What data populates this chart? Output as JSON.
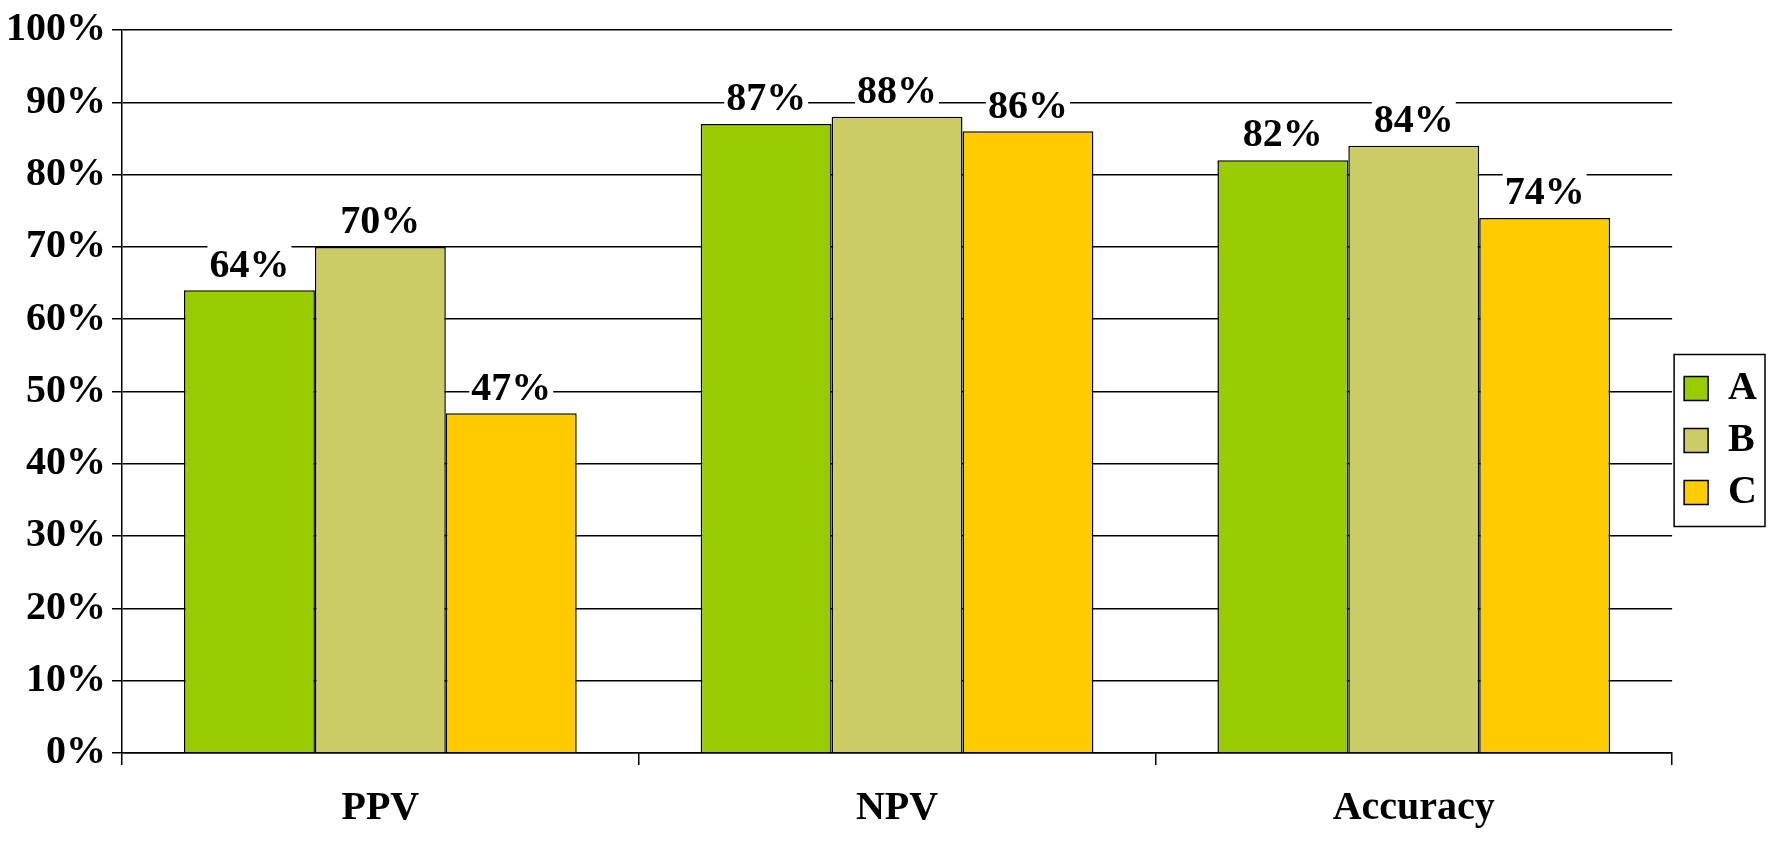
{
  "chart_data": {
    "type": "bar",
    "categories": [
      "PPV",
      "NPV",
      "Accuracy"
    ],
    "series": [
      {
        "name": "A",
        "color": "#99cc00",
        "values": [
          64,
          87,
          82
        ],
        "value_labels": [
          "64%",
          "87%",
          "82%"
        ]
      },
      {
        "name": "B",
        "color": "#cccc66",
        "values": [
          70,
          88,
          84
        ],
        "value_labels": [
          "70%",
          "88%",
          "84%"
        ]
      },
      {
        "name": "C",
        "color": "#ffcc00",
        "values": [
          47,
          86,
          74
        ],
        "value_labels": [
          "47%",
          "86%",
          "74%"
        ]
      }
    ],
    "ylim": [
      0,
      100
    ],
    "yticks": [
      {
        "value": 0,
        "label": "0%"
      },
      {
        "value": 10,
        "label": "10%"
      },
      {
        "value": 20,
        "label": "20%"
      },
      {
        "value": 30,
        "label": "30%"
      },
      {
        "value": 40,
        "label": "40%"
      },
      {
        "value": 50,
        "label": "50%"
      },
      {
        "value": 60,
        "label": "60%"
      },
      {
        "value": 70,
        "label": "70%"
      },
      {
        "value": 80,
        "label": "80%"
      },
      {
        "value": 90,
        "label": "90%"
      },
      {
        "value": 100,
        "label": "100%"
      }
    ],
    "grid": "y",
    "legend": "right"
  }
}
